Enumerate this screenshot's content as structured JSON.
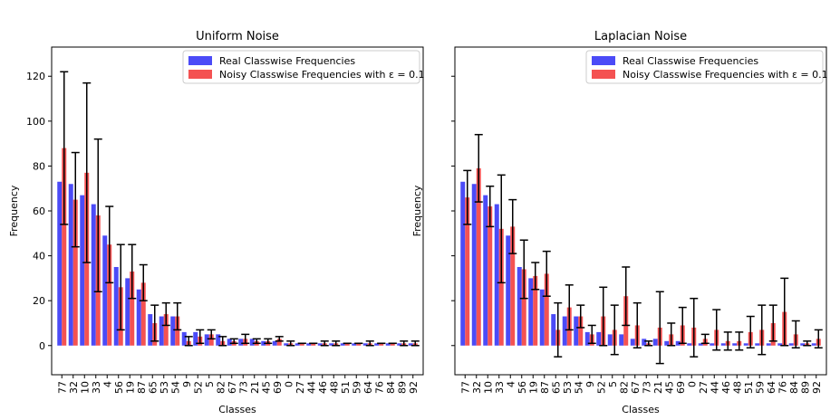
{
  "chart_data": [
    {
      "type": "bar",
      "title": "Uniform Noise",
      "xlabel": "Classes",
      "ylabel": "Frequency",
      "ylim": [
        -13,
        133
      ],
      "yticks": [
        0,
        20,
        40,
        60,
        80,
        100,
        120
      ],
      "categories": [
        "77",
        "32",
        "10",
        "33",
        "4",
        "56",
        "19",
        "87",
        "65",
        "53",
        "54",
        "9",
        "52",
        "5",
        "82",
        "67",
        "73",
        "21",
        "45",
        "69",
        "0",
        "27",
        "44",
        "46",
        "48",
        "51",
        "59",
        "64",
        "76",
        "84",
        "89",
        "92"
      ],
      "series": [
        {
          "name": "Real Classwise Frequencies",
          "color": "#4b4bf7",
          "values": [
            73,
            72,
            67,
            63,
            49,
            35,
            30,
            25,
            14,
            13,
            13,
            6,
            6,
            5,
            5,
            3,
            3,
            3,
            2,
            2,
            1,
            1,
            1,
            1,
            1,
            1,
            1,
            1,
            1,
            1,
            1,
            1
          ]
        },
        {
          "name": "Noisy Classwise Frequencies with ε = 0.1",
          "color": "#f45252",
          "values": [
            88,
            65,
            77,
            58,
            45,
            26,
            33,
            28,
            10,
            14,
            13,
            2,
            4,
            5,
            2,
            2,
            3,
            2,
            2,
            3,
            1,
            1,
            1,
            1,
            1,
            1,
            1,
            1,
            1,
            1,
            1,
            1
          ],
          "error": [
            34,
            21,
            40,
            34,
            17,
            19,
            12,
            8,
            8,
            5,
            6,
            2,
            3,
            2,
            2,
            1,
            2,
            1,
            1,
            1,
            1,
            0,
            0,
            1,
            1,
            0,
            0,
            1,
            0,
            0,
            1,
            1
          ]
        }
      ],
      "legend_position": "top-right"
    },
    {
      "type": "bar",
      "title": "Laplacian Noise",
      "xlabel": "Classes",
      "ylabel": "Frequency",
      "ylim": [
        -13,
        133
      ],
      "yticks": [
        0,
        20,
        40,
        60,
        80,
        100,
        120
      ],
      "categories": [
        "77",
        "32",
        "10",
        "33",
        "4",
        "56",
        "19",
        "87",
        "65",
        "53",
        "54",
        "9",
        "52",
        "5",
        "82",
        "67",
        "73",
        "21",
        "45",
        "69",
        "0",
        "27",
        "44",
        "46",
        "48",
        "51",
        "59",
        "64",
        "76",
        "84",
        "89",
        "92"
      ],
      "series": [
        {
          "name": "Real Classwise Frequencies",
          "color": "#4b4bf7",
          "values": [
            73,
            72,
            67,
            63,
            49,
            35,
            30,
            25,
            14,
            13,
            13,
            6,
            6,
            5,
            5,
            3,
            3,
            3,
            2,
            2,
            1,
            1,
            1,
            1,
            1,
            1,
            1,
            1,
            1,
            1,
            1,
            1
          ]
        },
        {
          "name": "Noisy Classwise Frequencies with ε = 0.1",
          "color": "#f45252",
          "values": [
            66,
            79,
            62,
            52,
            53,
            34,
            31,
            32,
            7,
            17,
            13,
            5,
            13,
            7,
            22,
            9,
            1,
            8,
            5,
            9,
            8,
            3,
            7,
            2,
            2,
            6,
            7,
            10,
            15,
            5,
            1,
            3
          ],
          "error": [
            12,
            15,
            9,
            24,
            12,
            13,
            6,
            10,
            12,
            10,
            5,
            4,
            13,
            11,
            13,
            10,
            1,
            16,
            5,
            8,
            13,
            2,
            9,
            4,
            4,
            7,
            11,
            8,
            15,
            6,
            1,
            4
          ]
        }
      ],
      "legend_position": "top-right"
    }
  ]
}
